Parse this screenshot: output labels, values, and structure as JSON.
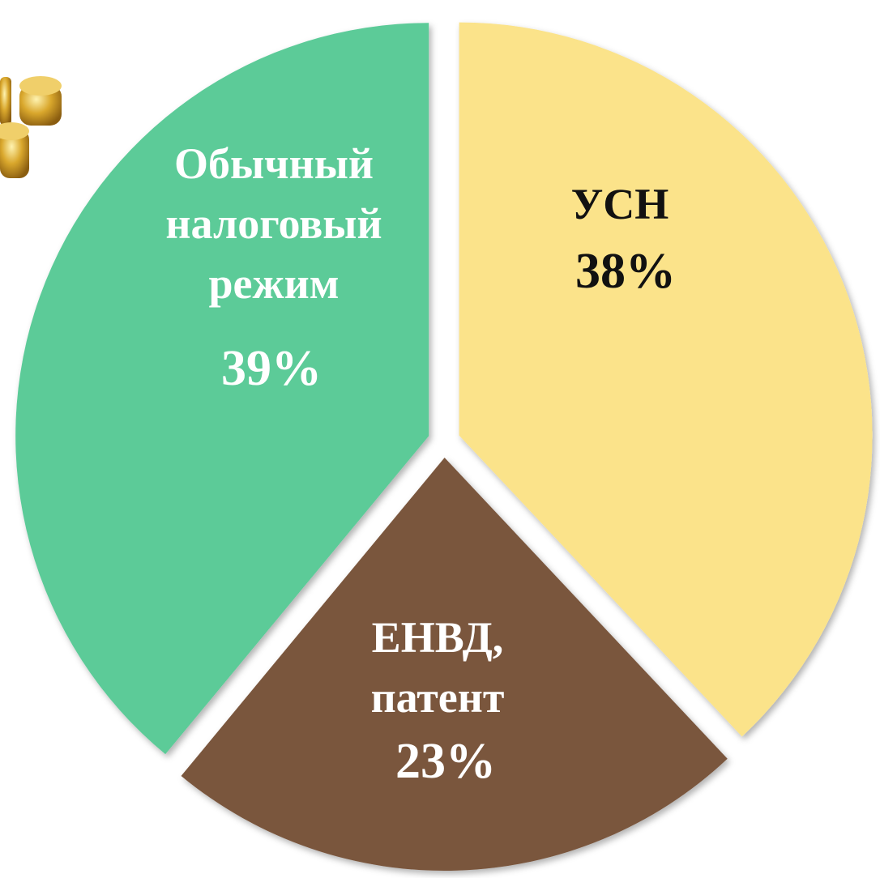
{
  "chart_data": {
    "type": "pie",
    "categories": [
      "УСН",
      "ЕНВД, патент",
      "Обычный налоговый режим"
    ],
    "values": [
      38,
      23,
      39
    ],
    "value_labels": [
      "38%",
      "23%",
      "39%"
    ],
    "colors": [
      "#fbe38a",
      "#7a563e",
      "#5ccb98"
    ],
    "start_angle": 0,
    "direction": "clockwise"
  }
}
